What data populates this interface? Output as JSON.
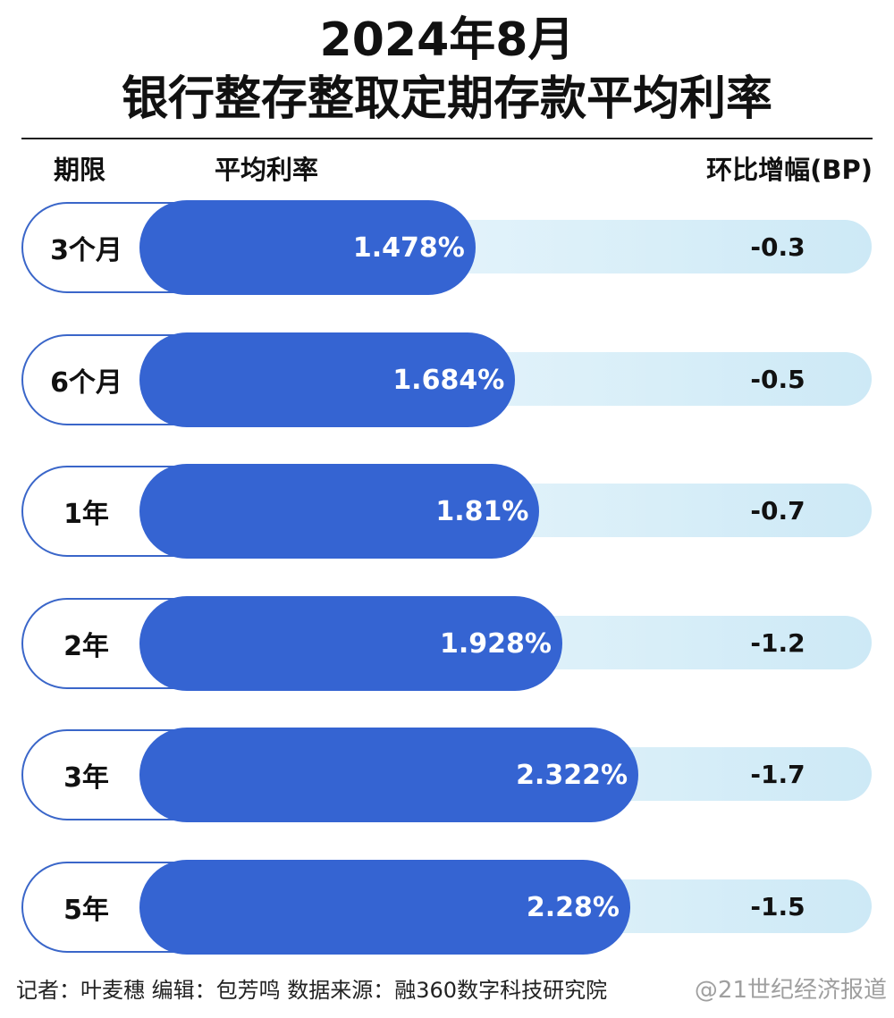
{
  "title_line1": "2024年8月",
  "title_line2": "银行整存整取定期存款平均利率",
  "headers": {
    "term": "期限",
    "rate": "平均利率",
    "change": "环比增幅(BP)"
  },
  "chart_data": {
    "type": "bar",
    "title": "2024年8月 银行整存整取定期存款平均利率",
    "categories": [
      "3个月",
      "6个月",
      "1年",
      "2年",
      "3年",
      "5年"
    ],
    "series": [
      {
        "name": "平均利率",
        "values": [
          1.478,
          1.684,
          1.81,
          1.928,
          2.322,
          2.28
        ]
      },
      {
        "name": "环比增幅(BP)",
        "values": [
          -0.3,
          -0.5,
          -0.7,
          -1.2,
          -1.7,
          -1.5
        ]
      }
    ],
    "value_labels": [
      "1.478%",
      "1.684%",
      "1.81%",
      "1.928%",
      "2.322%",
      "2.28%"
    ],
    "change_labels": [
      "-0.3",
      "-0.5",
      "-0.7",
      "-1.2",
      "-1.7",
      "-1.5"
    ],
    "orientation": "horizontal"
  },
  "footer": "记者：叶麦穗  编辑：包芳鸣  数据来源：融360数字科技研究院",
  "watermark": "@21世纪经济报道",
  "colors": {
    "bar": "#3564d2",
    "outline": "#3a66c9",
    "track": "#d6edf8"
  }
}
